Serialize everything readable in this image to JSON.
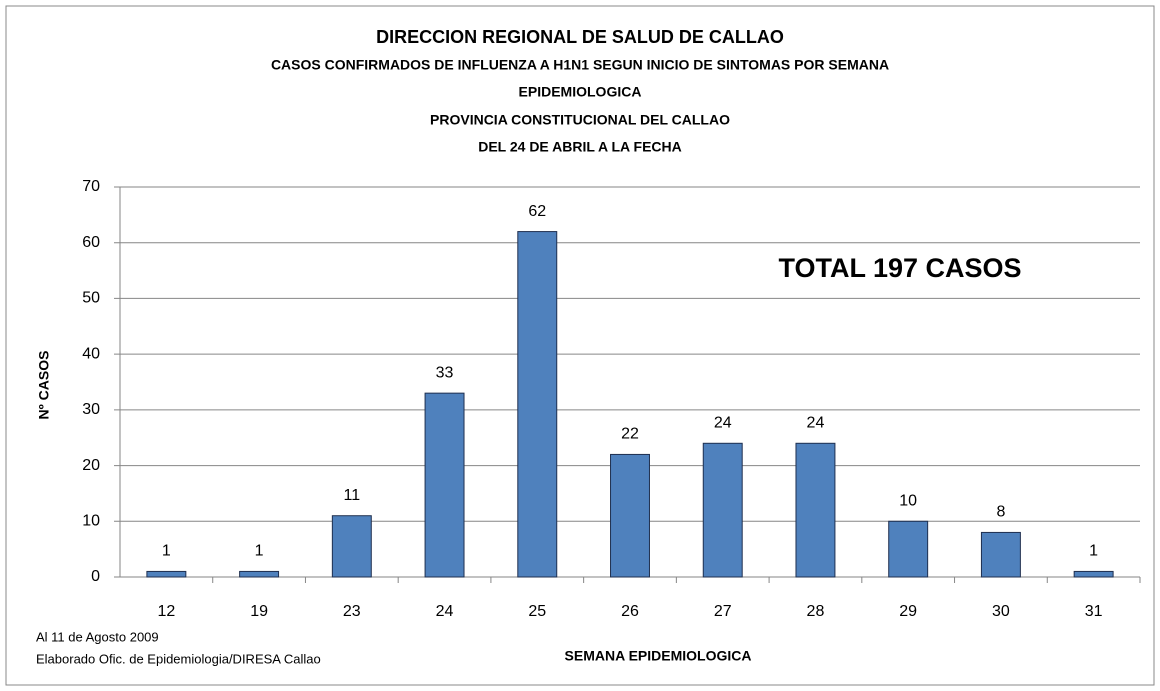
{
  "chart_data": {
    "type": "bar",
    "title": "DIRECCION REGIONAL DE SALUD DE CALLAO",
    "subtitle": [
      "CASOS CONFIRMADOS DE INFLUENZA A H1N1 SEGUN  INICIO DE SINTOMAS POR SEMANA",
      "EPIDEMIOLOGICA",
      "PROVINCIA CONSTITUCIONAL DEL CALLAO",
      "DEL 24 DE ABRIL A LA FECHA"
    ],
    "annotation": "TOTAL  197 CASOS",
    "notes": [
      "Al 11 de Agosto 2009",
      "Elaborado Ofic. de Epidemiologia/DIRESA Callao"
    ],
    "x_label": "SEMANA EPIDEMIOLOGICA",
    "y_label": "Nº CASOS",
    "categories": [
      "12",
      "19",
      "23",
      "24",
      "25",
      "26",
      "27",
      "28",
      "29",
      "30",
      "31"
    ],
    "values": [
      1,
      1,
      11,
      33,
      62,
      22,
      24,
      24,
      10,
      8,
      1
    ],
    "color": "#4f81bd",
    "ylim": [
      0,
      70
    ],
    "yticks": [
      0,
      10,
      20,
      30,
      40,
      50,
      60,
      70
    ],
    "grid": true
  }
}
